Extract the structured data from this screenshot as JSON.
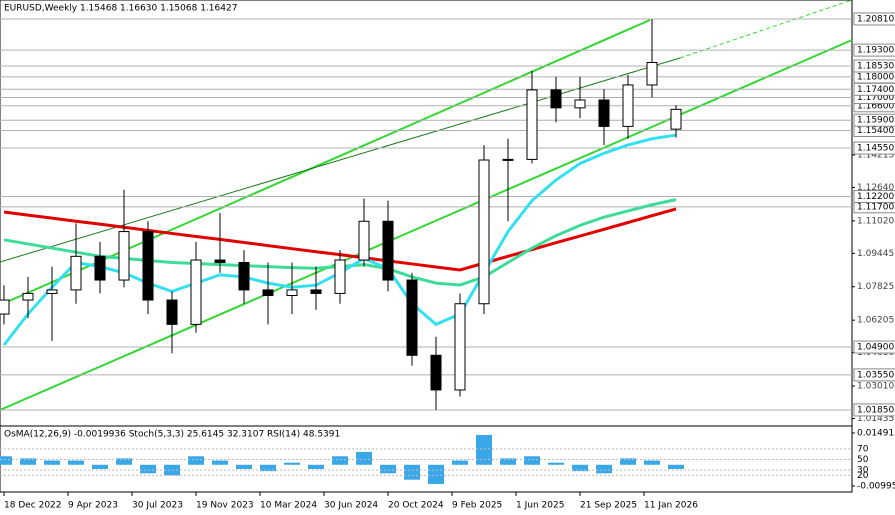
{
  "title": "EURUSD,Weekly  1.15468 1.16630 1.15068 1.16427",
  "chart_data": {
    "type": "candlestick",
    "x": [
      "2022-12-18",
      "2023-01-29",
      "2023-03-12",
      "2023-04-23",
      "2023-06-04",
      "2023-07-16",
      "2023-08-27",
      "2023-10-08",
      "2023-11-19",
      "2023-12-31",
      "2024-02-11",
      "2024-03-24",
      "2024-05-05",
      "2024-06-16",
      "2024-07-28",
      "2024-09-08",
      "2024-10-20",
      "2024-12-01",
      "2025-01-12",
      "2025-02-23",
      "2025-04-06",
      "2025-05-18",
      "2025-06-29",
      "2025-08-10",
      "2025-09-21",
      "2025-11-02",
      "2025-12-14",
      "2026-01-25",
      "2026-03-08"
    ],
    "open": [
      1.065,
      1.0718,
      1.075,
      1.0767,
      1.093,
      1.0815,
      1.105,
      1.0718,
      1.06,
      1.0912,
      1.09,
      1.0767,
      1.074,
      1.0767,
      1.075,
      1.0912,
      1.11,
      1.0815,
      1.045,
      1.0282,
      1.07,
      1.1397,
      1.14,
      1.1737,
      1.165,
      1.1688,
      1.156,
      1.1761,
      1.15468
    ],
    "high": [
      1.079,
      1.083,
      1.088,
      1.109,
      1.1,
      1.1252,
      1.11,
      1.076,
      1.1,
      1.114,
      1.096,
      1.09,
      1.09,
      1.088,
      1.096,
      1.121,
      1.12,
      1.085,
      1.054,
      1.075,
      1.147,
      1.15,
      1.183,
      1.18,
      1.18,
      1.174,
      1.181,
      1.2081,
      1.1663
    ],
    "low": [
      1.06,
      1.063,
      1.052,
      1.07,
      1.075,
      1.078,
      1.065,
      1.046,
      1.056,
      1.085,
      1.07,
      1.06,
      1.065,
      1.067,
      1.07,
      1.088,
      1.076,
      1.04,
      1.0185,
      1.025,
      1.065,
      1.11,
      1.138,
      1.158,
      1.16,
      1.147,
      1.15,
      1.17,
      1.15068
    ],
    "close": [
      1.0718,
      1.075,
      1.0767,
      1.093,
      1.0815,
      1.105,
      1.0718,
      1.06,
      1.0912,
      1.09,
      1.0767,
      1.074,
      1.0767,
      1.075,
      1.0912,
      1.11,
      1.0815,
      1.045,
      1.0282,
      1.07,
      1.1397,
      1.14,
      1.1737,
      1.165,
      1.1688,
      1.156,
      1.1761,
      1.187,
      1.16427
    ],
    "lines": [
      {
        "color": "#e00000",
        "values": [
          1.1145,
          1.113,
          1.1115,
          1.11,
          1.1086,
          1.1071,
          1.1056,
          1.1041,
          1.1026,
          1.1012,
          1.0997,
          1.0982,
          1.0967,
          1.0952,
          1.0938,
          1.0923,
          1.0908,
          1.0893,
          1.0878,
          1.0864,
          1.0897,
          1.093,
          1.0963,
          1.0996,
          1.1028,
          1.1061,
          1.1094,
          1.1127,
          1.116
        ]
      },
      {
        "color": "#3ddc97",
        "values": [
          1.101,
          1.099,
          1.097,
          1.095,
          1.093,
          1.092,
          1.091,
          1.09,
          1.0895,
          1.089,
          1.0885,
          1.088,
          1.0875,
          1.0872,
          1.088,
          1.089,
          1.087,
          1.083,
          1.08,
          1.0791,
          1.083,
          1.09,
          1.097,
          1.103,
          1.108,
          1.112,
          1.115,
          1.118,
          1.1205
        ]
      },
      {
        "color": "#33e0f0",
        "values": [
          1.05,
          1.065,
          1.078,
          1.09,
          1.088,
          1.085,
          1.08,
          1.076,
          1.08,
          1.084,
          1.083,
          1.08,
          1.078,
          1.079,
          1.085,
          1.092,
          1.087,
          1.07,
          1.06,
          1.065,
          1.085,
          1.105,
          1.12,
          1.13,
          1.138,
          1.143,
          1.147,
          1.15,
          1.1518
        ]
      }
    ],
    "ylim": [
      1.0112,
      1.2173
    ],
    "yticks": [
      1.01435,
      {
        "value": 1.0301,
        "label": "1.03010"
      },
      {
        "value": 1.0463,
        "label": "1.04630"
      },
      1.06205,
      1.07825,
      1.09445,
      {
        "value": 1.1102,
        "label": "1.11020"
      },
      {
        "value": 1.1264,
        "label": "1.12640"
      },
      1.14215
    ],
    "levels": [
      {
        "value": 1.0185,
        "label": "1.01850"
      },
      {
        "value": 1.0355,
        "label": "1.03550"
      },
      {
        "value": 1.049,
        "label": "1.04900"
      },
      {
        "value": 1.117,
        "label": "1.11700"
      },
      {
        "value": 1.122,
        "label": "1.12200"
      },
      {
        "value": 1.1455,
        "label": "1.14550"
      },
      {
        "value": 1.154,
        "label": "1.15400"
      },
      {
        "value": 1.159,
        "label": "1.15900"
      },
      {
        "value": 1.166,
        "label": "1.16600"
      },
      {
        "value": 1.17,
        "label": "1.17000"
      },
      {
        "value": 1.174,
        "label": "1.17400"
      },
      {
        "value": 1.18,
        "label": "1.18000"
      },
      {
        "value": 1.1853,
        "label": "1.18530"
      },
      {
        "value": 1.193,
        "label": "1.19300"
      },
      {
        "value": 1.2081,
        "label": "1.20810"
      }
    ],
    "xticks": [
      "18 Dec 2022",
      "9 Apr 2023",
      "30 Jul 2023",
      "19 Nov 2023",
      "10 Mar 2024",
      "30 Jun 2024",
      "20 Oct 2024",
      "9 Feb 2025",
      "1 Jun 2025",
      "21 Sep 2025",
      "11 Jan 2026"
    ],
    "indicator": {
      "title": "OsMA(12,26,9) -0.0019936  Stoch(5,3,3) 25.6145 32.3107  RSI(14) 48.5391",
      "color": "#3aa7e8",
      "values": [
        0.004,
        0.003,
        0.002,
        0.002,
        -0.002,
        0.003,
        -0.004,
        -0.005,
        0.004,
        0.002,
        -0.002,
        -0.003,
        0.001,
        -0.002,
        0.004,
        0.006,
        -0.004,
        -0.007,
        -0.009,
        0.002,
        0.014,
        0.003,
        0.004,
        0.001,
        -0.003,
        -0.004,
        0.003,
        0.002,
        -0.002
      ],
      "ylim": [
        -0.009951,
        0.014911
      ],
      "yticks": [
        -0.009951,
        0.014911
      ],
      "stoch_lim": [
        0,
        100
      ],
      "stoch_ticks": [
        20,
        30,
        50,
        70
      ]
    }
  }
}
